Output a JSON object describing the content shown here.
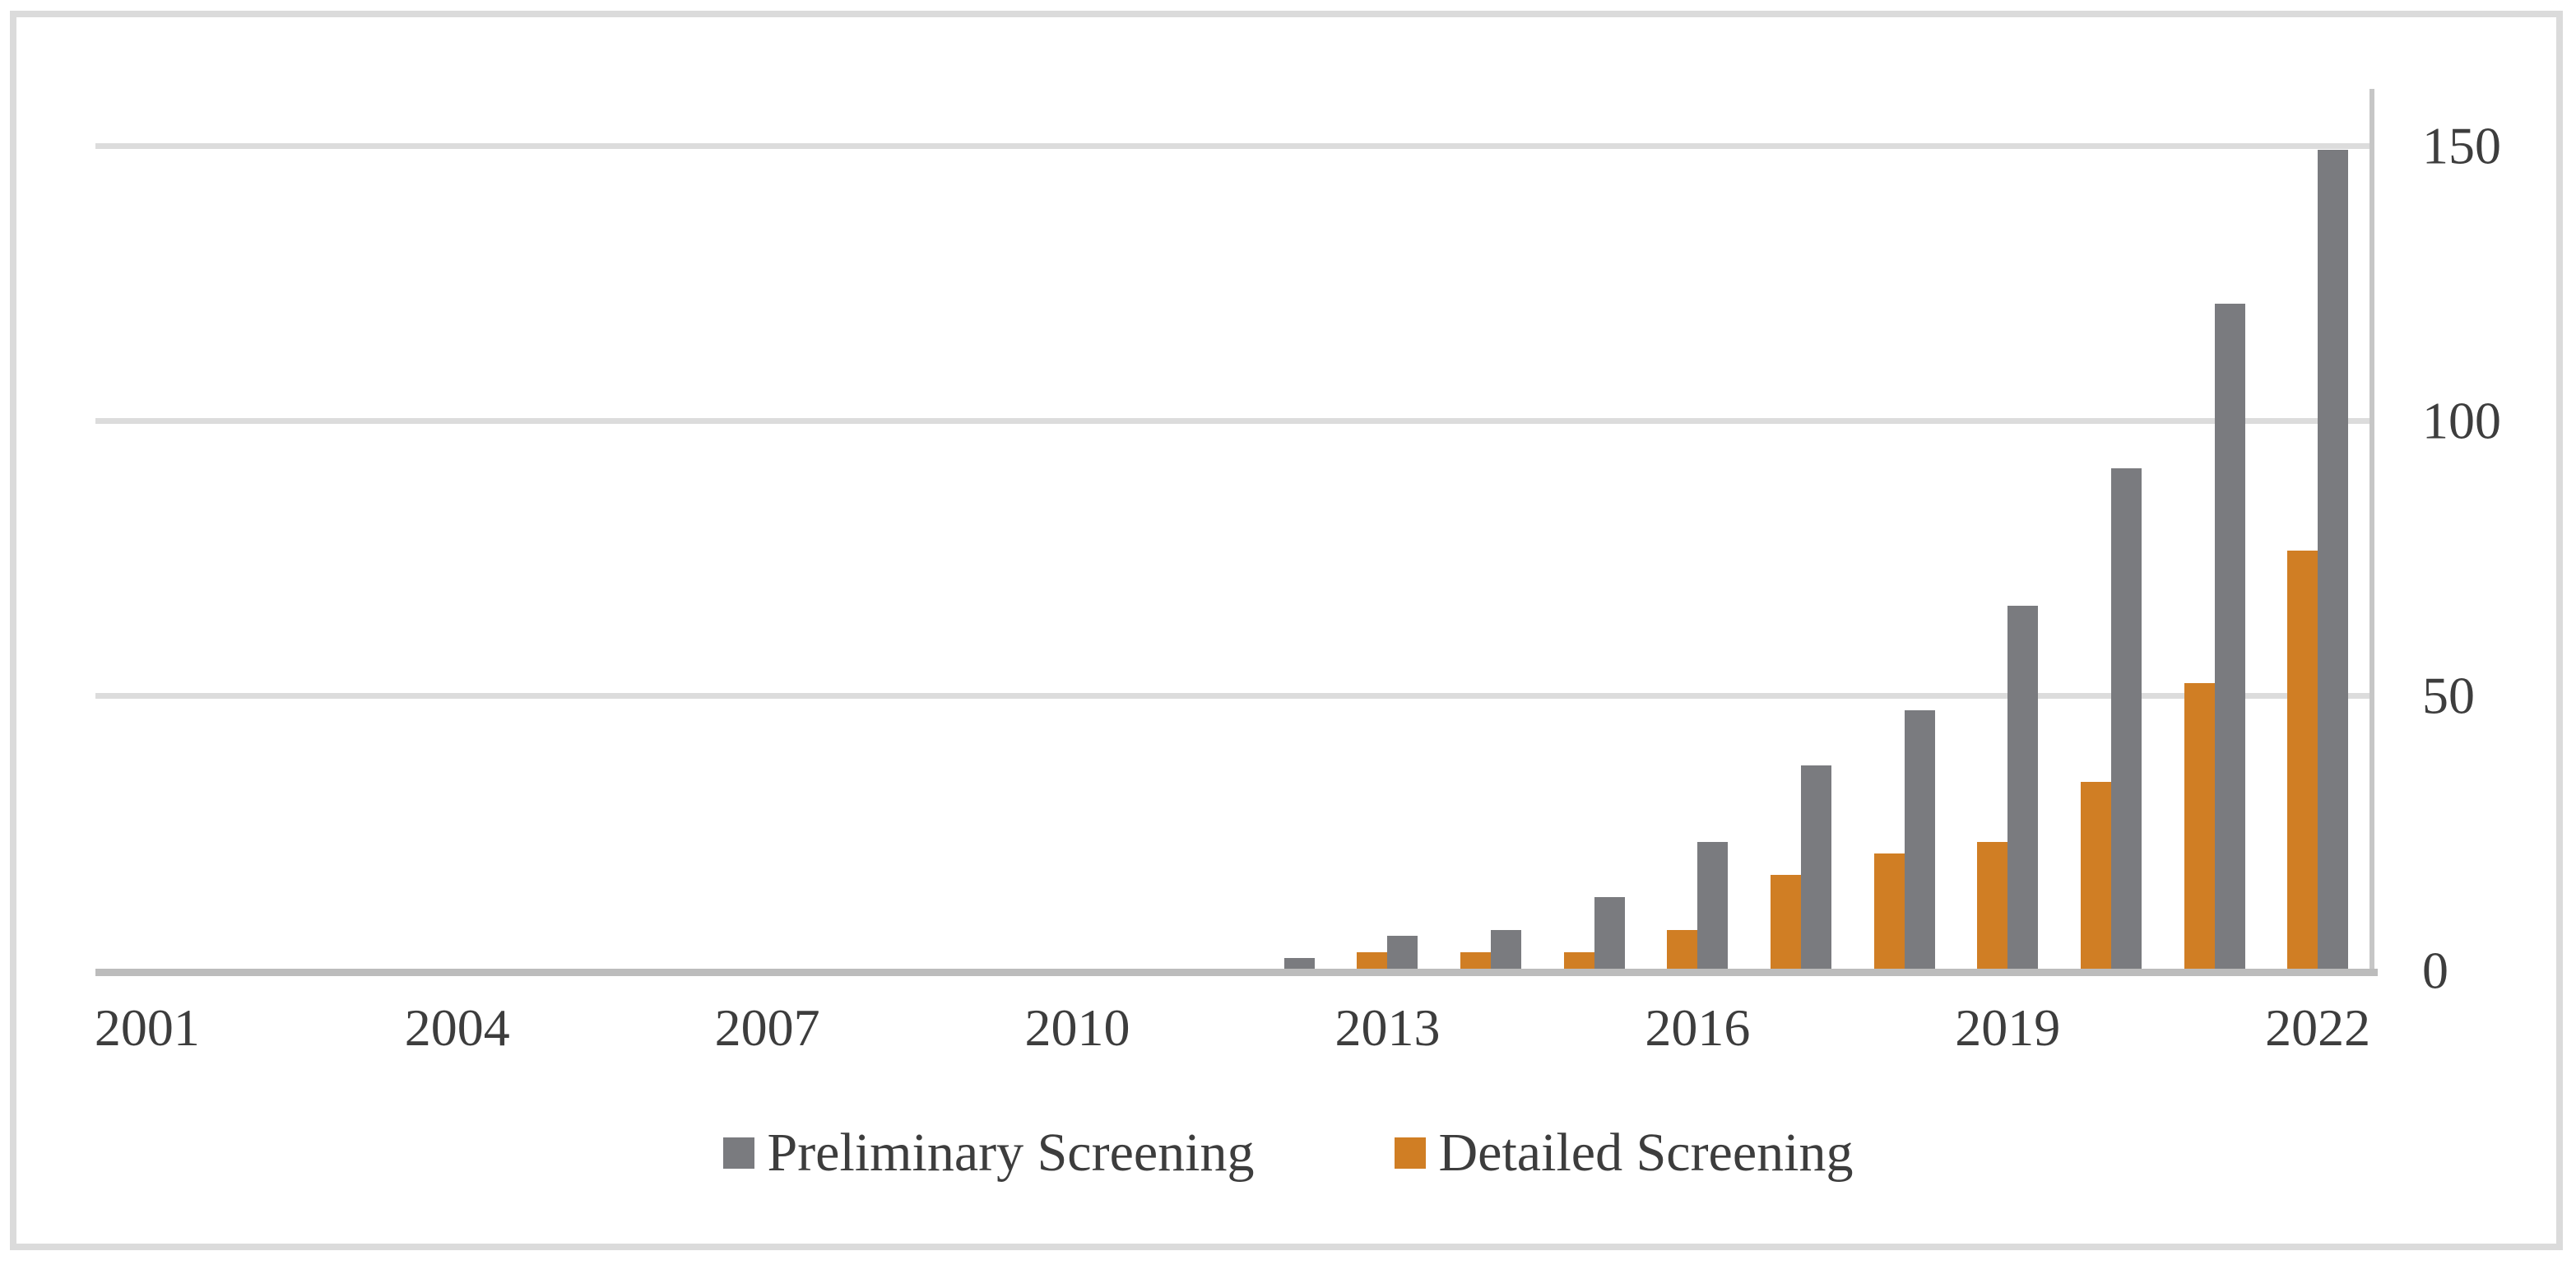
{
  "figure": {
    "background": "#FFFFFF",
    "border_color": "#DBDBDB"
  },
  "chart_data": {
    "type": "bar",
    "title": "",
    "xlabel": "",
    "ylabel": "",
    "categories": [
      "2001",
      "2002",
      "2003",
      "2004",
      "2005",
      "2006",
      "2007",
      "2008",
      "2009",
      "2010",
      "2011",
      "2012",
      "2013",
      "2014",
      "2015",
      "2016",
      "2017",
      "2018",
      "2019",
      "2020",
      "2021",
      "2022"
    ],
    "series": [
      {
        "name": "Preliminary Screening",
        "color": "#7A7B7F",
        "values": [
          0,
          0,
          0,
          0,
          0,
          0,
          0,
          0,
          0,
          0,
          0,
          2,
          6,
          7,
          13,
          23,
          37,
          47,
          66,
          91,
          121,
          149
        ]
      },
      {
        "name": "Detailed Screening",
        "color": "#D07E24",
        "values": [
          0,
          0,
          0,
          0,
          0,
          0,
          0,
          0,
          0,
          0,
          0,
          0,
          3,
          3,
          3,
          7,
          17,
          21,
          23,
          34,
          52,
          76
        ]
      }
    ],
    "bar_order_in_group": [
      "Detailed Screening",
      "Preliminary Screening"
    ],
    "x_tick_labels": [
      "2001",
      "2004",
      "2007",
      "2010",
      "2013",
      "2016",
      "2019",
      "2022"
    ],
    "y_ticks": [
      0,
      50,
      100,
      150
    ],
    "gridline_values": [
      50,
      100,
      150
    ],
    "ylim": [
      0,
      160
    ],
    "axis_side": "right",
    "grid": true,
    "legend_position": "bottom",
    "colors": {
      "gridline": "#DCDCDC",
      "baseline": "#BCBCBC",
      "axis_line": "#C6C6C6",
      "text": "#3D3D3D"
    }
  }
}
